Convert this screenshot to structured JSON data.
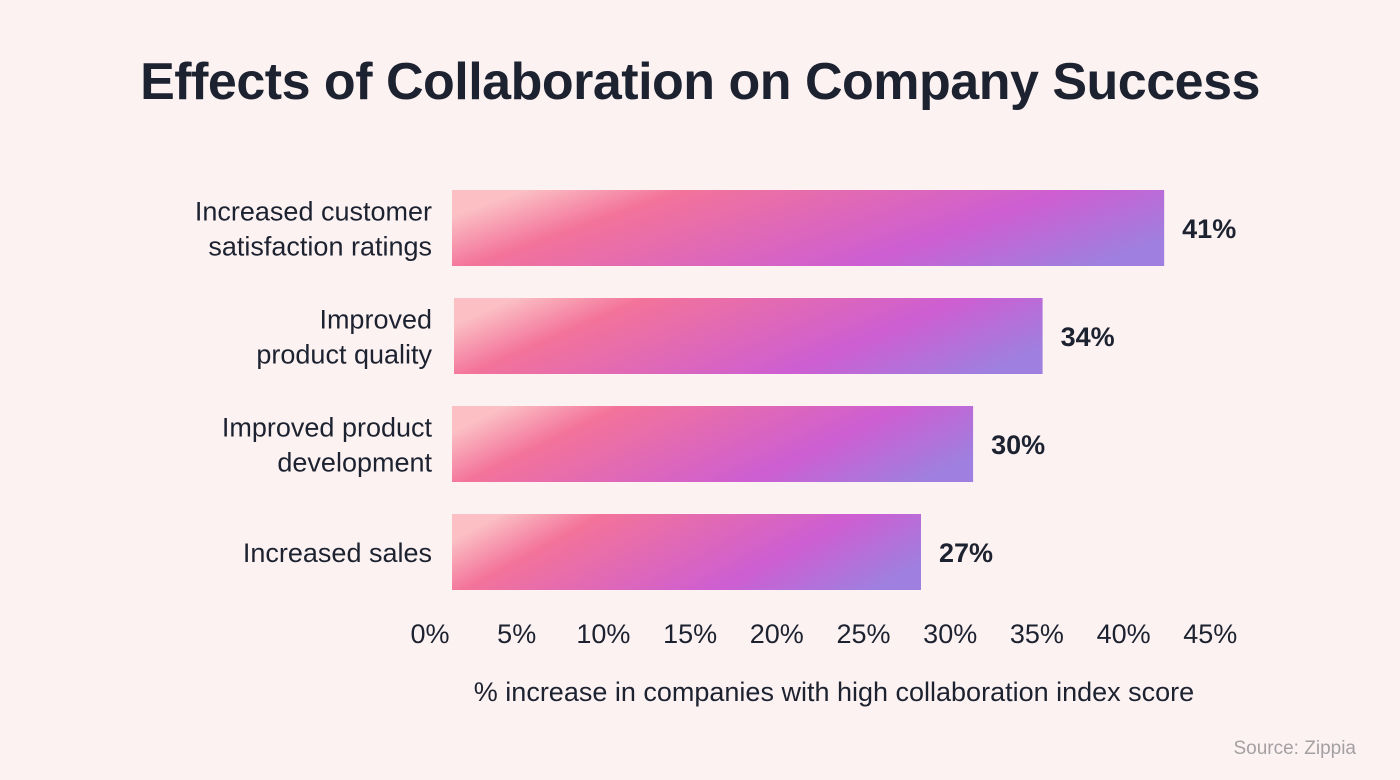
{
  "title": "Effects of Collaboration on Company Success",
  "source": "Source: Zippia",
  "colors": {
    "background": "#fdf2f2",
    "text": "#1c2230",
    "bar_gradient": [
      "#fbbfc4",
      "#f3739a",
      "#cd5ed2",
      "#9f7fdf"
    ],
    "source_text": "#a3a0a3"
  },
  "chart_data": {
    "type": "bar",
    "orientation": "horizontal",
    "title": "Effects of Collaboration on Company Success",
    "categories": [
      [
        "Increased customer",
        "satisfaction ratings"
      ],
      [
        "Improved",
        "product quality"
      ],
      [
        "Improved product",
        "development"
      ],
      [
        "Increased sales"
      ]
    ],
    "values": [
      41,
      34,
      30,
      27
    ],
    "value_labels": [
      "41%",
      "34%",
      "30%",
      "27%"
    ],
    "xlabel": "% increase in companies with high collaboration index score",
    "ylabel": "",
    "xlim": [
      0,
      45
    ],
    "x_ticks": [
      "0%",
      "5%",
      "10%",
      "15%",
      "20%",
      "25%",
      "30%",
      "35%",
      "40%",
      "45%"
    ],
    "grid": false,
    "legend": "none"
  }
}
